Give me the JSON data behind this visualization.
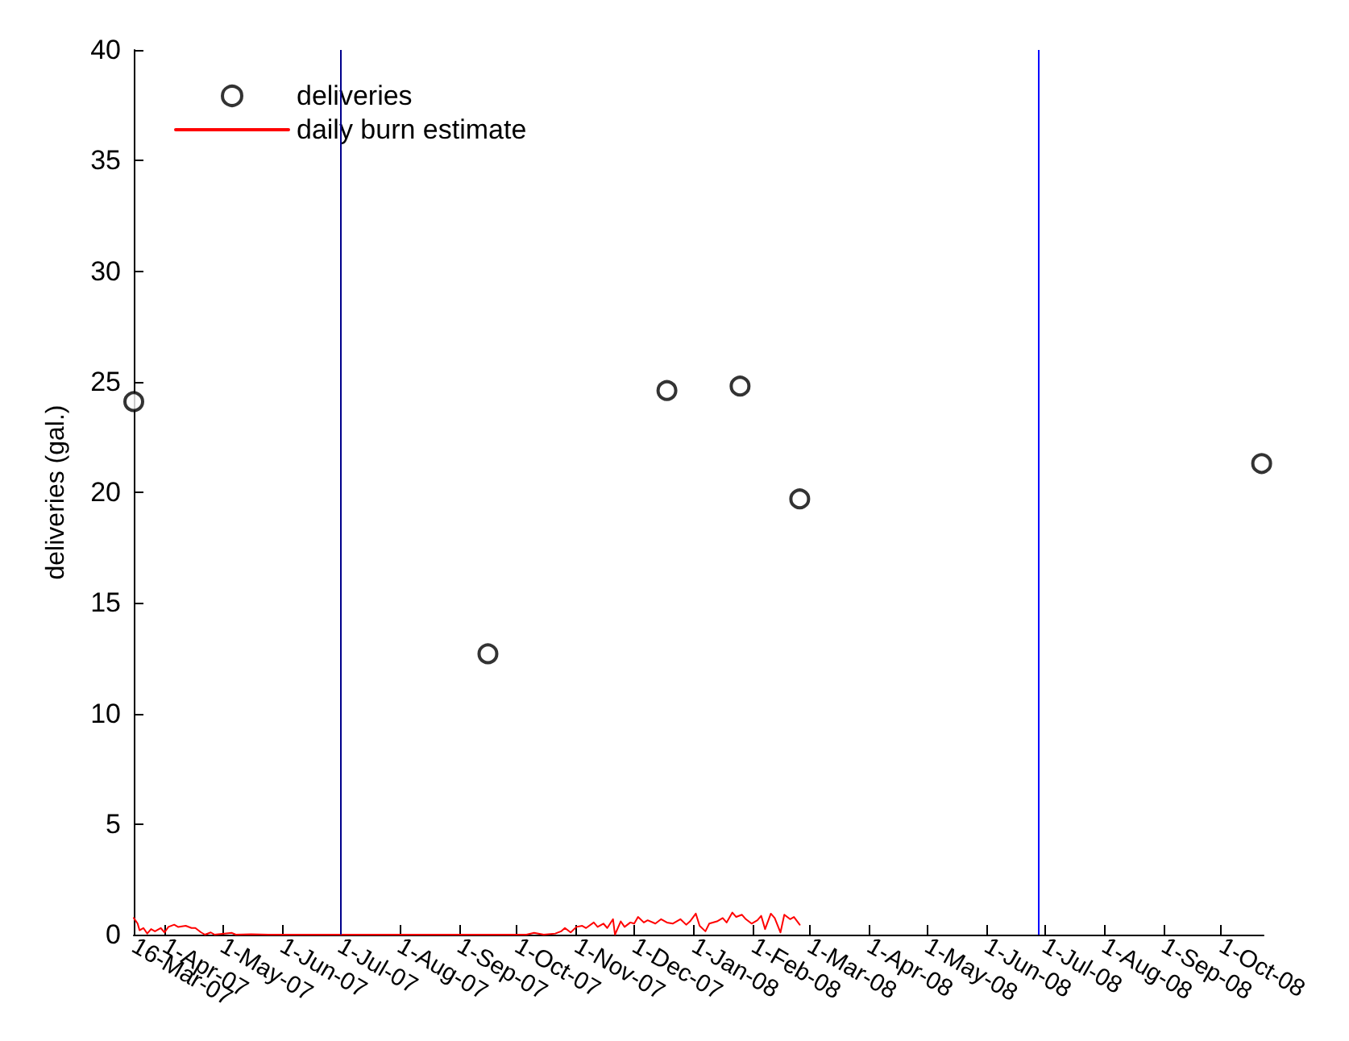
{
  "chart_data": {
    "type": "scatter",
    "ylabel": "deliveries (gal.)",
    "xlim": [
      "2007-03-16",
      "2008-10-23"
    ],
    "ylim": [
      0,
      40
    ],
    "yticks": [
      0,
      5,
      10,
      15,
      20,
      25,
      30,
      35,
      40
    ],
    "xticks": [
      {
        "value": "2007-03-16",
        "label": "16-Mar-07"
      },
      {
        "value": "2007-04-01",
        "label": "1-Apr-07"
      },
      {
        "value": "2007-05-01",
        "label": "1-May-07"
      },
      {
        "value": "2007-06-01",
        "label": "1-Jun-07"
      },
      {
        "value": "2007-07-01",
        "label": "1-Jul-07"
      },
      {
        "value": "2007-08-01",
        "label": "1-Aug-07"
      },
      {
        "value": "2007-09-01",
        "label": "1-Sep-07"
      },
      {
        "value": "2007-10-01",
        "label": "1-Oct-07"
      },
      {
        "value": "2007-11-01",
        "label": "1-Nov-07"
      },
      {
        "value": "2007-12-01",
        "label": "1-Dec-07"
      },
      {
        "value": "2008-01-01",
        "label": "1-Jan-08"
      },
      {
        "value": "2008-02-01",
        "label": "1-Feb-08"
      },
      {
        "value": "2008-03-01",
        "label": "1-Mar-08"
      },
      {
        "value": "2008-04-01",
        "label": "1-Apr-08"
      },
      {
        "value": "2008-05-01",
        "label": "1-May-08"
      },
      {
        "value": "2008-06-01",
        "label": "1-Jun-08"
      },
      {
        "value": "2008-07-01",
        "label": "1-Jul-08"
      },
      {
        "value": "2008-08-01",
        "label": "1-Aug-08"
      },
      {
        "value": "2008-09-01",
        "label": "1-Sep-08"
      },
      {
        "value": "2008-10-01",
        "label": "1-Oct-08"
      }
    ],
    "grid": false,
    "legend": "top left",
    "marker": "circle",
    "ref_lines": [
      {
        "axis": "x",
        "value": "2007-07-01",
        "color": "#00008b"
      },
      {
        "axis": "x",
        "value": "2008-06-28",
        "color": "#0000ff"
      }
    ],
    "series": [
      {
        "name": "deliveries",
        "color": "#000000",
        "x": [
          "2007-03-16",
          "2007-09-16",
          "2007-12-18",
          "2008-01-25",
          "2008-02-25",
          "2008-10-22"
        ],
        "values": [
          24.1,
          12.7,
          24.6,
          24.8,
          19.7,
          21.3
        ]
      },
      {
        "name": "daily burn estimate",
        "type": "line",
        "marker": "none",
        "line_style": "solid",
        "color": "#ff0000",
        "x": [
          "2007-03-16",
          "2007-03-18",
          "2007-03-19",
          "2007-03-21",
          "2007-03-23",
          "2007-03-25",
          "2007-03-27",
          "2007-03-30",
          "2007-04-01",
          "2007-04-03",
          "2007-04-06",
          "2007-04-08",
          "2007-04-12",
          "2007-04-15",
          "2007-04-17",
          "2007-04-20",
          "2007-04-22",
          "2007-04-25",
          "2007-04-27",
          "2007-05-06",
          "2007-05-08",
          "2007-05-16",
          "2007-05-25",
          "2007-10-06",
          "2007-10-10",
          "2007-10-15",
          "2007-10-21",
          "2007-10-24",
          "2007-10-26",
          "2007-10-29",
          "2007-11-01",
          "2007-11-04",
          "2007-11-06",
          "2007-11-10",
          "2007-11-12",
          "2007-11-15",
          "2007-11-17",
          "2007-11-20",
          "2007-11-21",
          "2007-11-24",
          "2007-11-26",
          "2007-11-29",
          "2007-12-01",
          "2007-12-03",
          "2007-12-06",
          "2007-12-08",
          "2007-12-12",
          "2007-12-15",
          "2007-12-18",
          "2007-12-21",
          "2007-12-25",
          "2007-12-28",
          "2007-12-30",
          "2008-01-02",
          "2008-01-04",
          "2008-01-07",
          "2008-01-09",
          "2008-01-13",
          "2008-01-16",
          "2008-01-18",
          "2008-01-21",
          "2008-01-23",
          "2008-01-26",
          "2008-01-28",
          "2008-01-31",
          "2008-02-03",
          "2008-02-05",
          "2008-02-07",
          "2008-02-10",
          "2008-02-12",
          "2008-02-15",
          "2008-02-17",
          "2008-02-20",
          "2008-02-22",
          "2008-02-25"
        ],
        "values": [
          0.75,
          0.5,
          0.2,
          0.3,
          0.05,
          0.25,
          0.15,
          0.3,
          0.1,
          0.35,
          0.45,
          0.35,
          0.4,
          0.3,
          0.3,
          0.1,
          0,
          0.1,
          0,
          0.08,
          0,
          0.02,
          0,
          0,
          0.08,
          0,
          0.05,
          0.15,
          0.3,
          0.1,
          0.35,
          0.4,
          0.3,
          0.55,
          0.35,
          0.5,
          0.3,
          0.7,
          0,
          0.6,
          0.35,
          0.55,
          0.5,
          0.8,
          0.55,
          0.65,
          0.5,
          0.7,
          0.55,
          0.5,
          0.7,
          0.45,
          0.6,
          0.95,
          0.4,
          0.15,
          0.5,
          0.6,
          0.75,
          0.55,
          1,
          0.8,
          0.9,
          0.7,
          0.5,
          0.65,
          0.85,
          0.25,
          0.95,
          0.75,
          0.1,
          0.9,
          0.7,
          0.8,
          0.45
        ]
      }
    ]
  }
}
